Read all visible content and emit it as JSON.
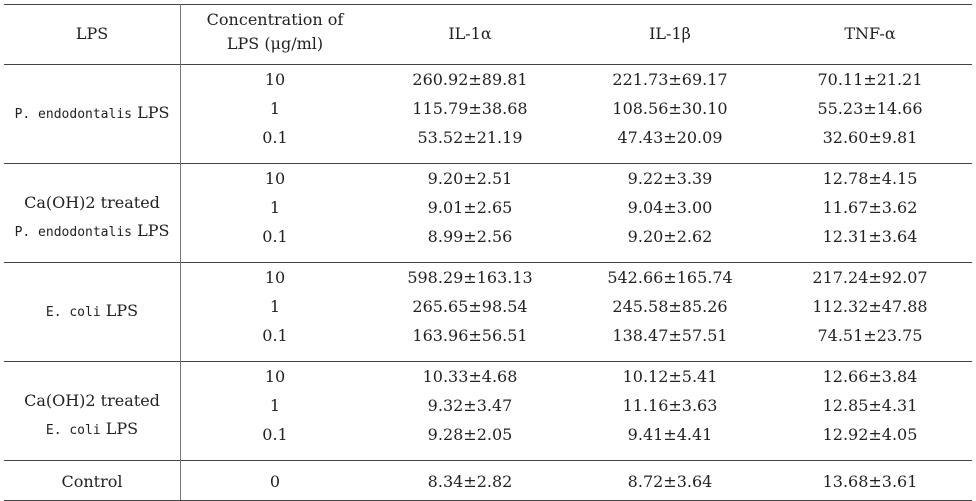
{
  "headers": {
    "lps": "LPS",
    "conc_line1": "Concentration of",
    "conc_line2": "LPS (μg/ml)",
    "il1a": "IL-1α",
    "il1b": "IL-1β",
    "tnfa": "TNF-α"
  },
  "groups": [
    {
      "label_prefix": "",
      "label_main": "P. endodontalis",
      "label_suffix": " LPS",
      "rows": [
        {
          "conc": "10",
          "il1a": "260.92±89.81",
          "il1b": "221.73±69.17",
          "tnfa": "70.11±21.21"
        },
        {
          "conc": "1",
          "il1a": "115.79±38.68",
          "il1b": "108.56±30.10",
          "tnfa": "55.23±14.66"
        },
        {
          "conc": "0.1",
          "il1a": "53.52±21.19",
          "il1b": "47.43±20.09",
          "tnfa": "32.60±9.81"
        }
      ]
    },
    {
      "label_prefix": "Ca(OH)2 treated",
      "label_main": "P. endodontalis",
      "label_suffix": " LPS",
      "rows": [
        {
          "conc": "10",
          "il1a": "9.20±2.51",
          "il1b": "9.22±3.39",
          "tnfa": "12.78±4.15"
        },
        {
          "conc": "1",
          "il1a": "9.01±2.65",
          "il1b": "9.04±3.00",
          "tnfa": "11.67±3.62"
        },
        {
          "conc": "0.1",
          "il1a": "8.99±2.56",
          "il1b": "9.20±2.62",
          "tnfa": "12.31±3.64"
        }
      ]
    },
    {
      "label_prefix": "",
      "label_main": "E. coli",
      "label_suffix": " LPS",
      "rows": [
        {
          "conc": "10",
          "il1a": "598.29±163.13",
          "il1b": "542.66±165.74",
          "tnfa": "217.24±92.07"
        },
        {
          "conc": "1",
          "il1a": "265.65±98.54",
          "il1b": "245.58±85.26",
          "tnfa": "112.32±47.88"
        },
        {
          "conc": "0.1",
          "il1a": "163.96±56.51",
          "il1b": "138.47±57.51",
          "tnfa": "74.51±23.75"
        }
      ]
    },
    {
      "label_prefix": "Ca(OH)2 treated",
      "label_main": "E. coli",
      "label_suffix": " LPS",
      "rows": [
        {
          "conc": "10",
          "il1a": "10.33±4.68",
          "il1b": "10.12±5.41",
          "tnfa": "12.66±3.84"
        },
        {
          "conc": "1",
          "il1a": "9.32±3.47",
          "il1b": "11.16±3.63",
          "tnfa": "12.85±4.31"
        },
        {
          "conc": "0.1",
          "il1a": "9.28±2.05",
          "il1b": "9.41±4.41",
          "tnfa": "12.92±4.05"
        }
      ]
    }
  ],
  "control": {
    "label": "Control",
    "conc": "0",
    "il1a": "8.34±2.82",
    "il1b": "8.72±3.64",
    "tnfa": "13.68±3.61"
  }
}
